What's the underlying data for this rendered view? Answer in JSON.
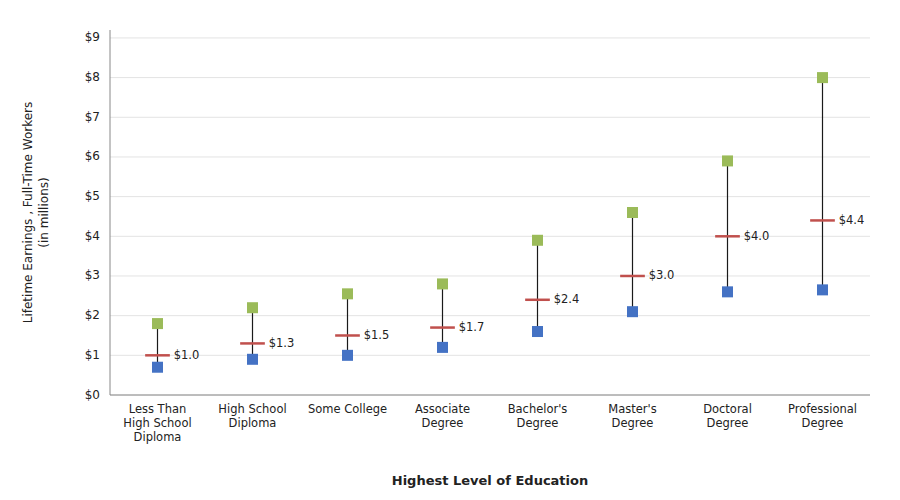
{
  "chart_data": {
    "type": "range",
    "categories": [
      "Less Than\nHigh School\nDiploma",
      "High School\nDiploma",
      "Some College",
      "Associate\nDegree",
      "Bachelor's\nDegree",
      "Master's\nDegree",
      "Doctoral\nDegree",
      "Professional\nDegree"
    ],
    "color": "#1A1A1A",
    "series": [
      {
        "color": "#4472C4",
        "marker": "square",
        "values": [
          0.7,
          0.9,
          1.0,
          1.2,
          1.6,
          2.1,
          2.6,
          2.65
        ]
      },
      {
        "color": "#C0504D",
        "marker": "dash",
        "values": [
          1.0,
          1.3,
          1.5,
          1.7,
          2.4,
          3.0,
          4.0,
          4.4
        ],
        "value_labels": [
          "$1.0",
          "$1.3",
          "$1.5",
          "$1.7",
          "$2.4",
          "$3.0",
          "$4.0",
          "$4.4"
        ]
      },
      {
        "color": "#9BBB59",
        "marker": "square",
        "values": [
          1.8,
          2.2,
          2.55,
          2.8,
          3.9,
          4.6,
          5.9,
          8.0
        ]
      }
    ],
    "data_labels": true,
    "ylabel": "Lifetime Earnings , Full-Time Workers\n(in millions)",
    "xlabel": "Highest Level of Education",
    "ylim": [
      0,
      9.2
    ],
    "yticks": [
      {
        "value": 0,
        "label": "$0"
      },
      {
        "value": 1,
        "label": "$1"
      },
      {
        "value": 2,
        "label": "$2"
      },
      {
        "value": 3,
        "label": "$3"
      },
      {
        "value": 4,
        "label": "$4"
      },
      {
        "value": 5,
        "label": "$5"
      },
      {
        "value": 6,
        "label": "$6"
      },
      {
        "value": 7,
        "label": "$7"
      },
      {
        "value": 8,
        "label": "$8"
      },
      {
        "value": 9,
        "label": "$9"
      }
    ],
    "grid": true
  }
}
